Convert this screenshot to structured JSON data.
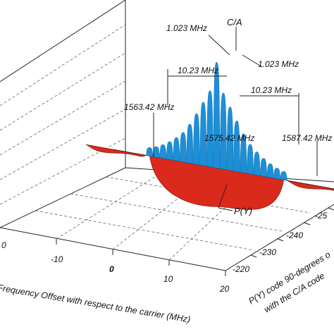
{
  "chart_data": {
    "type": "area",
    "projection": "3d-perspective",
    "title": "",
    "xlabel": "Frequency Offset with respect to the carrier (MHz)",
    "zlabel_line1": "P(Y) code 90-degrees o",
    "zlabel_line2": "with the C/A code",
    "x_ticks": [
      "-10",
      "0",
      "10",
      "20"
    ],
    "x_tick_left_partial": "0",
    "z_ticks": [
      "-220",
      "-230",
      "-240",
      "-25"
    ],
    "series": [
      {
        "name": "C/A",
        "color": "#1e8fd6",
        "chip_rate_mhz": 1.023,
        "lobes": [
          {
            "offset_mhz": -10.0,
            "rel_height": 0.08
          },
          {
            "offset_mhz": -9.0,
            "rel_height": 0.1
          },
          {
            "offset_mhz": -8.0,
            "rel_height": 0.13
          },
          {
            "offset_mhz": -7.0,
            "rel_height": 0.17
          },
          {
            "offset_mhz": -6.0,
            "rel_height": 0.22
          },
          {
            "offset_mhz": -5.0,
            "rel_height": 0.28
          },
          {
            "offset_mhz": -4.0,
            "rel_height": 0.37
          },
          {
            "offset_mhz": -3.0,
            "rel_height": 0.48
          },
          {
            "offset_mhz": -2.0,
            "rel_height": 0.6
          },
          {
            "offset_mhz": -1.0,
            "rel_height": 0.72
          },
          {
            "offset_mhz": 0.0,
            "rel_height": 1.0
          },
          {
            "offset_mhz": 1.0,
            "rel_height": 0.72
          },
          {
            "offset_mhz": 2.0,
            "rel_height": 0.6
          },
          {
            "offset_mhz": 3.0,
            "rel_height": 0.48
          },
          {
            "offset_mhz": 4.0,
            "rel_height": 0.37
          },
          {
            "offset_mhz": 5.0,
            "rel_height": 0.28
          },
          {
            "offset_mhz": 6.0,
            "rel_height": 0.22
          },
          {
            "offset_mhz": 7.0,
            "rel_height": 0.17
          },
          {
            "offset_mhz": 8.0,
            "rel_height": 0.13
          },
          {
            "offset_mhz": 9.0,
            "rel_height": 0.1
          },
          {
            "offset_mhz": 10.0,
            "rel_height": 0.08
          }
        ]
      },
      {
        "name": "P(Y)",
        "color": "#d92a1c",
        "chip_rate_mhz": 10.23,
        "lobes": [
          {
            "offset_mhz": -15.0,
            "rel_height": 0.08
          },
          {
            "offset_mhz": 0.0,
            "rel_height": 1.0
          },
          {
            "offset_mhz": 15.0,
            "rel_height": 0.08
          }
        ]
      }
    ],
    "annotations": {
      "ca_label": "C/A",
      "py_label": "P(Y)",
      "ca_span_left": "1.023 MHz",
      "ca_span_right": "1.023 MHz",
      "py_span_left": "10.23 MHz",
      "py_span_right": "10.23 MHz",
      "freq_low": "1563.42 MHz",
      "freq_center": "1575.42 MHz",
      "freq_high": "1587.42 MHz"
    },
    "colors": {
      "ca": "#1e8fd6",
      "py": "#d92a1c",
      "frame": "#222222",
      "grid": "#555555"
    }
  }
}
